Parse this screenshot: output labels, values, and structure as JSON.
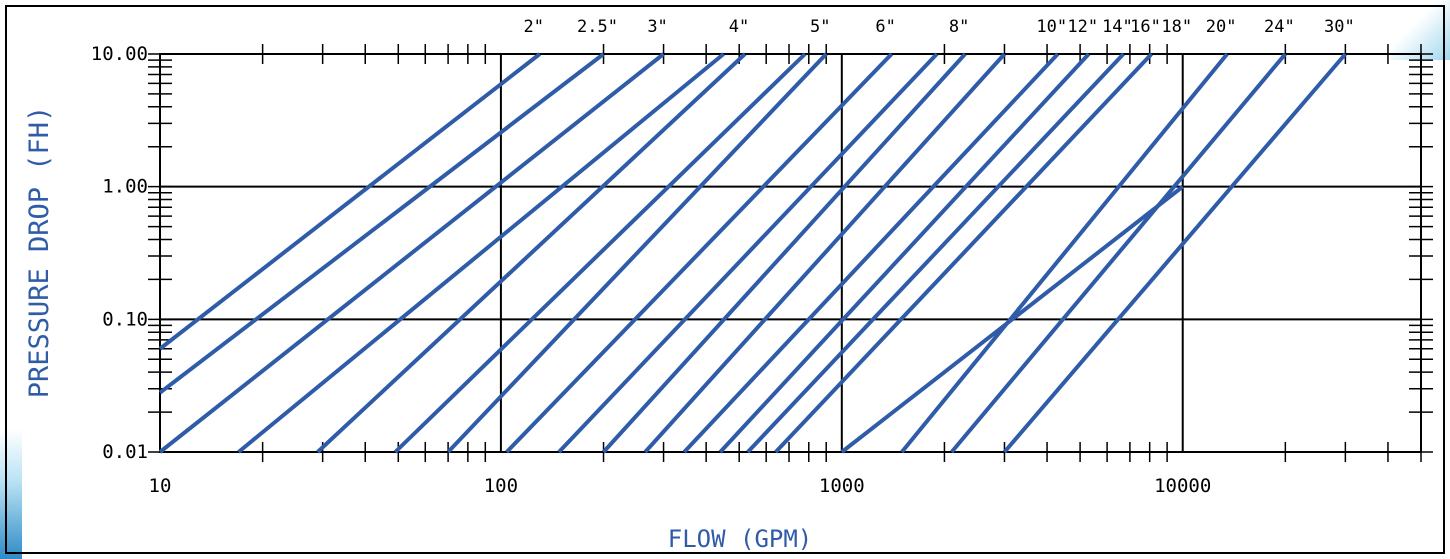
{
  "chart_data": {
    "type": "line",
    "xlabel": "FLOW (GPM)",
    "ylabel": "PRESSURE DROP (FH)",
    "x_scale": "log",
    "y_scale": "log",
    "xlim": [
      10,
      50000
    ],
    "ylim": [
      0.01,
      10
    ],
    "x_ticks": [
      {
        "value": 10,
        "label": "10"
      },
      {
        "value": 100,
        "label": "100"
      },
      {
        "value": 1000,
        "label": "1000"
      },
      {
        "value": 10000,
        "label": "10000"
      }
    ],
    "y_ticks": [
      {
        "value": 0.01,
        "label": "0.01"
      },
      {
        "value": 0.1,
        "label": "0.10"
      },
      {
        "value": 1,
        "label": "1.00"
      },
      {
        "value": 10,
        "label": "10.00"
      }
    ],
    "grid": true,
    "series": [
      {
        "name": "2\"",
        "x": [
          10,
          130
        ],
        "y": [
          0.06,
          10
        ]
      },
      {
        "name": "2.5\"",
        "x": [
          10,
          200
        ],
        "y": [
          0.028,
          10
        ]
      },
      {
        "name": "3\"",
        "x": [
          10,
          300
        ],
        "y": [
          0.01,
          10
        ]
      },
      {
        "name": "",
        "x": [
          17,
          450
        ],
        "y": [
          0.01,
          10
        ]
      },
      {
        "name": "4\"",
        "x": [
          29,
          520
        ],
        "y": [
          0.01,
          10
        ]
      },
      {
        "name": "",
        "x": [
          49,
          780
        ],
        "y": [
          0.01,
          10
        ]
      },
      {
        "name": "5\"",
        "x": [
          70,
          900
        ],
        "y": [
          0.01,
          10
        ]
      },
      {
        "name": "6\"",
        "x": [
          104,
          1400
        ],
        "y": [
          0.01,
          10
        ]
      },
      {
        "name": "",
        "x": [
          148,
          1900
        ],
        "y": [
          0.01,
          10
        ]
      },
      {
        "name": "8\"",
        "x": [
          200,
          2300
        ],
        "y": [
          0.01,
          10
        ]
      },
      {
        "name": "",
        "x": [
          265,
          3000
        ],
        "y": [
          0.01,
          10
        ]
      },
      {
        "name": "10\"",
        "x": [
          345,
          4300
        ],
        "y": [
          0.01,
          10
        ]
      },
      {
        "name": "12\"",
        "x": [
          440,
          5300
        ],
        "y": [
          0.01,
          10
        ]
      },
      {
        "name": "14\"",
        "x": [
          530,
          6700
        ],
        "y": [
          0.01,
          10
        ]
      },
      {
        "name": "16\"",
        "x": [
          640,
          8100
        ],
        "y": [
          0.01,
          10
        ]
      },
      {
        "name": "18\"",
        "x": [
          1000,
          10000
        ],
        "y": [
          0.01,
          1
        ]
      },
      {
        "name": "20\"",
        "x": [
          1500,
          13500
        ],
        "y": [
          0.01,
          10
        ]
      },
      {
        "name": "24\"",
        "x": [
          2100,
          20000
        ],
        "y": [
          0.01,
          10
        ]
      },
      {
        "name": "30\"",
        "x": [
          3000,
          30000
        ],
        "y": [
          0.01,
          10
        ]
      }
    ],
    "line_color": "#2f5ca8",
    "label_color": "#2f5ca8"
  }
}
